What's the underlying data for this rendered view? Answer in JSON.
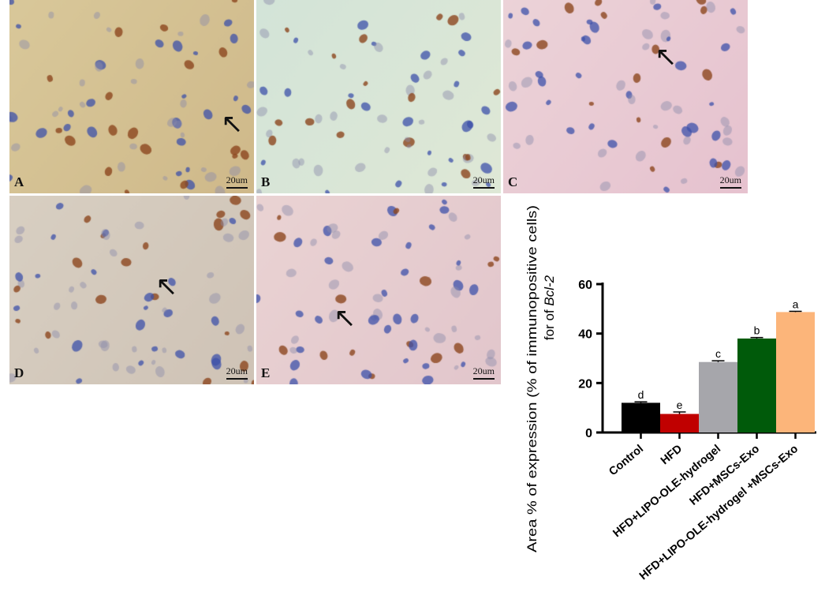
{
  "panels": [
    {
      "label": "A",
      "scale": "20um",
      "tone": [
        "#d9c89a",
        "#cfb98a"
      ],
      "arrow": true
    },
    {
      "label": "B",
      "scale": "20um",
      "tone": [
        "#d3e4d8",
        "#dfe8d6"
      ],
      "arrow": false
    },
    {
      "label": "C",
      "scale": "20um",
      "tone": [
        "#ecd3d8",
        "#e6c2cf"
      ],
      "arrow": true
    },
    {
      "label": "D",
      "scale": "20um",
      "tone": [
        "#d8cfc2",
        "#cfc3b6"
      ],
      "arrow": true
    },
    {
      "label": "E",
      "scale": "20um",
      "tone": [
        "#ead3d3",
        "#e2c6cc"
      ],
      "arrow": true
    }
  ],
  "chart_data": {
    "type": "bar",
    "categories": [
      "Control",
      "HFD",
      "HFD+LIPO-OLE-hydrogel",
      "HFD+MSCs-Exo",
      "HFD+LIPO-OLE-hydrogel +MSCs-Exo"
    ],
    "values": [
      12,
      7.5,
      28.5,
      38,
      48.7
    ],
    "errors": [
      0.4,
      0.8,
      0.5,
      0.4,
      0.3
    ],
    "significance_letters": [
      "d",
      "e",
      "c",
      "b",
      "a"
    ],
    "colors": [
      "#000000",
      "#c00000",
      "#a6a6ab",
      "#005a0a",
      "#fcb57a"
    ],
    "ylabel_line1": "Area % of expression (% of immunopositive cells)",
    "ylabel_line2_prefix": "for of ",
    "ylabel_line2_gene": "Bcl-2",
    "ylim": [
      0,
      60
    ],
    "yticks": [
      0,
      20,
      40,
      60
    ],
    "grid": false
  }
}
